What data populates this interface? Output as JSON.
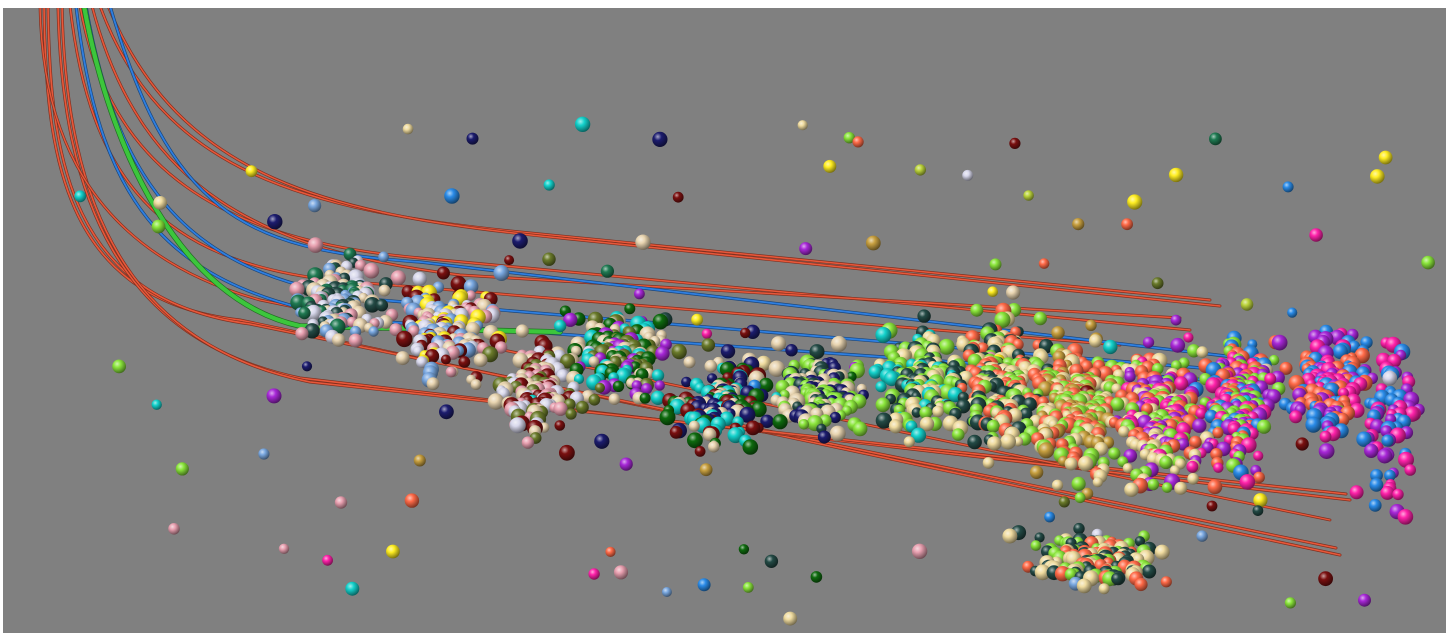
{
  "scene": {
    "background": "#808080",
    "frame": "#ffffff",
    "object_types": [
      "trajectory-line",
      "sphere-particle"
    ],
    "trajectory_colors": {
      "primary": "#e8583a",
      "secondary": "#2f7fe0",
      "highlight": "#3cc63c"
    },
    "sphere_palette": [
      "#f0dca0",
      "#ff6a48",
      "#8be63c",
      "#234a45",
      "#1c1c6e",
      "#14d2cc",
      "#e8d4b0",
      "#7a1010",
      "#ffee22",
      "#7aa8e0",
      "#e8a0b0",
      "#1f7a52",
      "#ff22aa",
      "#a828d8",
      "#2a8be8",
      "#d8d8ec",
      "#6a7a2a",
      "#0e6a0e",
      "#bcd43c",
      "#c8a040"
    ]
  }
}
